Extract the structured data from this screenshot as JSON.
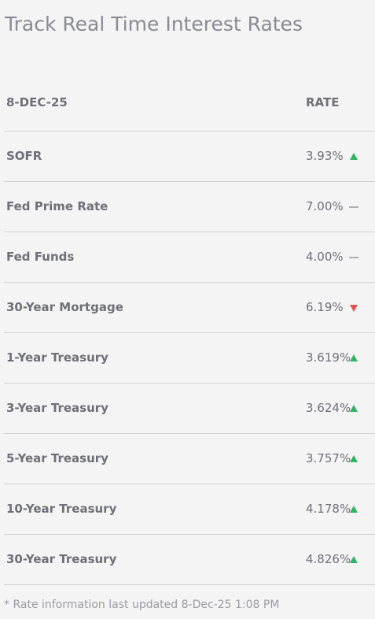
{
  "header": {
    "title": "Track Real Time Interest Rates"
  },
  "table": {
    "columns": [
      "8-DEC-25",
      "RATE"
    ],
    "rows": [
      {
        "name": "SOFR",
        "rate": "3.93%",
        "trend": "up"
      },
      {
        "name": "Fed Prime Rate",
        "rate": "7.00%",
        "trend": "flat"
      },
      {
        "name": "Fed Funds",
        "rate": "4.00%",
        "trend": "flat"
      },
      {
        "name": "30-Year Mortgage",
        "rate": "6.19%",
        "trend": "down"
      },
      {
        "name": "1-Year Treasury",
        "rate": "3.619%",
        "trend": "up"
      },
      {
        "name": "3-Year Treasury",
        "rate": "3.624%",
        "trend": "up"
      },
      {
        "name": "5-Year Treasury",
        "rate": "3.757%",
        "trend": "up"
      },
      {
        "name": "10-Year Treasury",
        "rate": "4.178%",
        "trend": "up"
      },
      {
        "name": "30-Year Treasury",
        "rate": "4.826%",
        "trend": "up"
      }
    ]
  },
  "footnote": "* Rate information last updated 8-Dec-25 1:08 PM"
}
